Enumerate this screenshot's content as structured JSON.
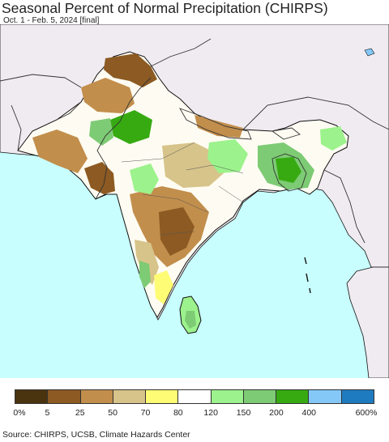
{
  "header": {
    "title": "Seasonal Percent of Normal Precipitation (CHIRPS)",
    "subtitle": "Oct. 1 - Feb. 5, 2024 [final]"
  },
  "legend": {
    "colors": [
      "#4a3410",
      "#8c5a22",
      "#c28e4c",
      "#d7c48a",
      "#fefc74",
      "#ffffff",
      "#9cf28c",
      "#7dcb74",
      "#37aa12",
      "#84c8f8",
      "#1f7bc0"
    ],
    "tick_labels": [
      "0%",
      "5",
      "25",
      "50",
      "70",
      "80",
      "120",
      "150",
      "200",
      "400",
      "600%"
    ]
  },
  "footer": {
    "source": "Source: CHIRPS, UCSB, Climate Hazards Center"
  },
  "map_colors": {
    "ocean": "#c8fefe",
    "outside_land": "#f0ebf1",
    "land_base": "#fefcf2",
    "border": "#333333",
    "coast": "#111111"
  }
}
